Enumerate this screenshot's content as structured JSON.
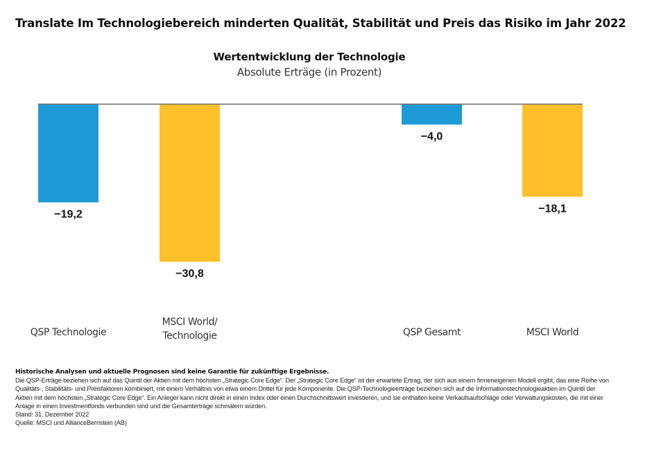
{
  "headline": "Translate Im Technologiebereich minderten Qualität, Stabilität und Preis das Risiko im Jahr 2022",
  "colors": {
    "qsp": "#1E9BD7",
    "msci": "#FFC02A",
    "baseline": "#6b6b6b",
    "text": "#111111"
  },
  "chart_data": {
    "type": "bar",
    "title": "Wertentwicklung der Technologie",
    "subtitle": "Absolute Erträge (in Prozent)",
    "xlabel": "",
    "ylabel": "",
    "categories": [
      "QSP Technologie",
      "MSCI World/\nTechnologie",
      "QSP Gesamt",
      "MSCI World"
    ],
    "category_lines": [
      [
        "QSP Technologie"
      ],
      [
        "MSCI World/",
        "Technologie"
      ],
      [
        "QSP Gesamt"
      ],
      [
        "MSCI World"
      ]
    ],
    "values": [
      -19.2,
      -30.8,
      -4.0,
      -18.1
    ],
    "value_labels": [
      "−19,2",
      "−30,8",
      "−4,0",
      "−18,1"
    ],
    "bar_series": [
      "qsp",
      "msci",
      "qsp",
      "msci"
    ],
    "ylim": [
      -30.8,
      0
    ],
    "grid": false,
    "legend": "none"
  },
  "footnotes": {
    "disclaimer": "Historische Analysen und aktuelle Prognosen sind keine Garantie für zukünftige Ergebnisse.",
    "lines": [
      "Die QSP-Erträge beziehen sich auf das Quintil der Aktien mit dem höchsten „Strategic Core Edge“. Der „Strategic Core Edge“ ist der erwartete Ertrag, der sich aus einem firmeneigenen Modell ergibt, das eine Reihe von",
      "Qualitäts-, Stabilitäts- und Preisfaktoren kombiniert, mit einem Verhältnis von etwa einem Drittel für jede Komponente. Die QSP-Technologieerträge beziehen sich auf die Informationstechnologieaktien im Quintil der",
      "Aktien mit dem höchsten „Strategic Core Edge“. Ein Anleger kann nicht direkt in einen Index oder einen Durchschnittswert investieren, und sie enthalten keine Verkaufsaufschläge oder Verwaltungskosten, die mit einer",
      "Anlage in einen Investmentfonds verbunden sind und die Gesamterträge schmälern würden."
    ],
    "date": "Stand: 31. Dezember 2022",
    "source": "Quelle: MSCI und AllianceBernstein (AB)"
  }
}
